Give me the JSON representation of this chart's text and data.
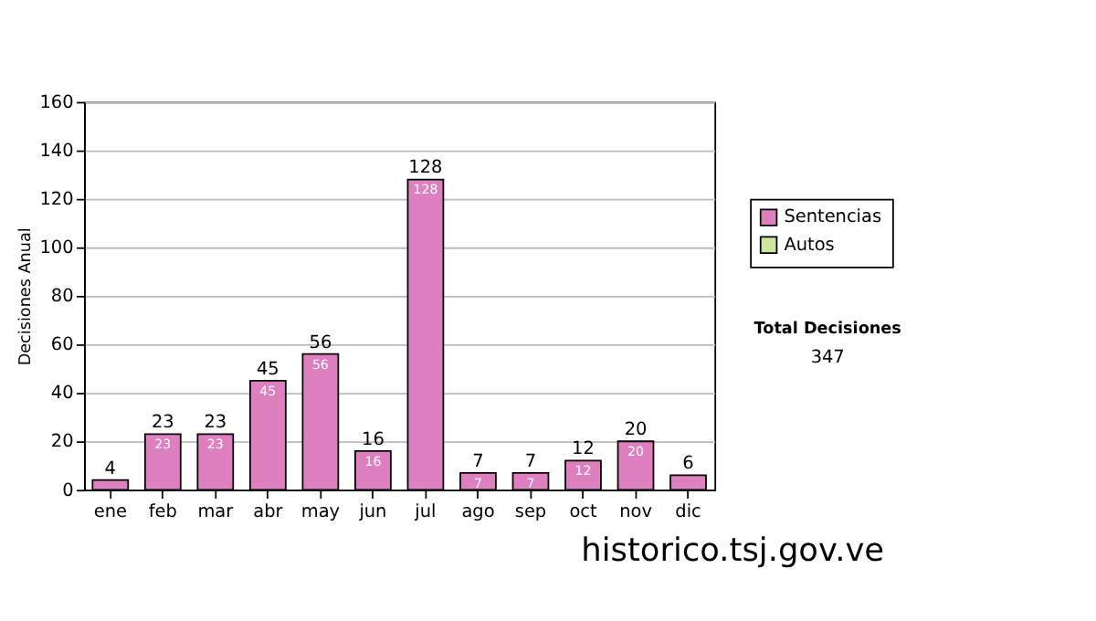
{
  "chart_data": {
    "type": "bar",
    "stacked": true,
    "ylabel": "Decisiones Anual",
    "categories": [
      "ene",
      "feb",
      "mar",
      "abr",
      "may",
      "jun",
      "jul",
      "ago",
      "sep",
      "oct",
      "nov",
      "dic"
    ],
    "series": [
      {
        "name": "Sentencias",
        "color": "#de80c0",
        "values": [
          4,
          23,
          23,
          45,
          56,
          16,
          128,
          7,
          7,
          12,
          20,
          6
        ],
        "value_labels": [
          null,
          "23",
          "23",
          "45",
          "56",
          "16",
          "128",
          "7",
          "7",
          "12",
          "20",
          null
        ]
      },
      {
        "name": "Autos",
        "color": "#cfe6a0",
        "values": [
          0,
          0,
          0,
          0,
          0,
          0,
          0,
          0,
          0,
          0,
          0,
          0
        ]
      }
    ],
    "totals": [
      "4",
      "23",
      "23",
      "45",
      "56",
      "16",
      "128",
      "7",
      "7",
      "12",
      "20",
      "6"
    ],
    "ylim": [
      0,
      160
    ],
    "yticks": [
      0,
      20,
      40,
      60,
      80,
      100,
      120,
      140,
      160
    ],
    "grid": "y",
    "legend": "right",
    "annotations": [
      "Total Decisiones",
      "347",
      "historico.tsj.gov.ve"
    ]
  }
}
